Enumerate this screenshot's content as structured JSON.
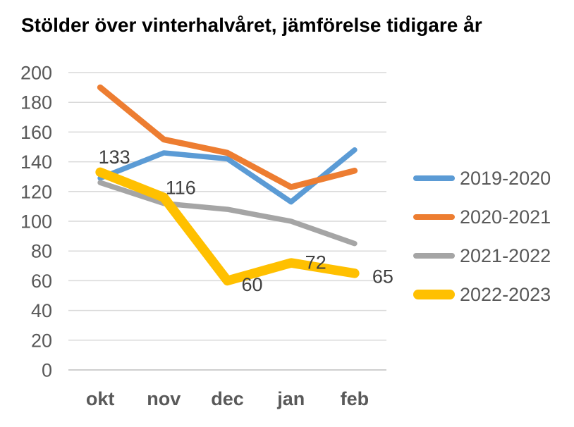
{
  "chart_data": {
    "type": "line",
    "title": "Stölder över vinterhalvåret, jämförelse tidigare år",
    "categories": [
      "okt",
      "nov",
      "dec",
      "jan",
      "feb"
    ],
    "series": [
      {
        "name": "2019-2020",
        "color": "#5B9BD5",
        "stroke_width": 7.5,
        "values": [
          129,
          146,
          142,
          113,
          148
        ]
      },
      {
        "name": "2020-2021",
        "color": "#ED7D31",
        "stroke_width": 8.5,
        "values": [
          190,
          155,
          146,
          123,
          134
        ]
      },
      {
        "name": "2021-2022",
        "color": "#A5A5A5",
        "stroke_width": 7.5,
        "values": [
          126,
          112,
          108,
          100,
          85
        ]
      },
      {
        "name": "2022-2023",
        "color": "#FFC000",
        "stroke_width": 13.5,
        "values": [
          133,
          116,
          60,
          72,
          65
        ],
        "data_labels": [
          {
            "text": "133",
            "index": 0,
            "dx": 20,
            "dy": -22
          },
          {
            "text": "116",
            "index": 1,
            "dx": 24,
            "dy": -14
          },
          {
            "text": "60",
            "index": 2,
            "dx": 35,
            "dy": 5
          },
          {
            "text": "72",
            "index": 3,
            "dx": 35,
            "dy": -1
          },
          {
            "text": "65",
            "index": 4,
            "dx": 40,
            "dy": 4
          }
        ]
      }
    ],
    "ylim": [
      0,
      200
    ],
    "ytick_step": 20,
    "yticks": [
      0,
      20,
      40,
      60,
      80,
      100,
      120,
      140,
      160,
      180,
      200
    ],
    "grid": "horizontal",
    "legend_position": "right",
    "colors": {
      "grid": "#D9D9D9",
      "axis_line": "#BFBFBF",
      "axis_text": "#595959",
      "data_label_text": "#404040",
      "title_text": "#000000"
    }
  }
}
